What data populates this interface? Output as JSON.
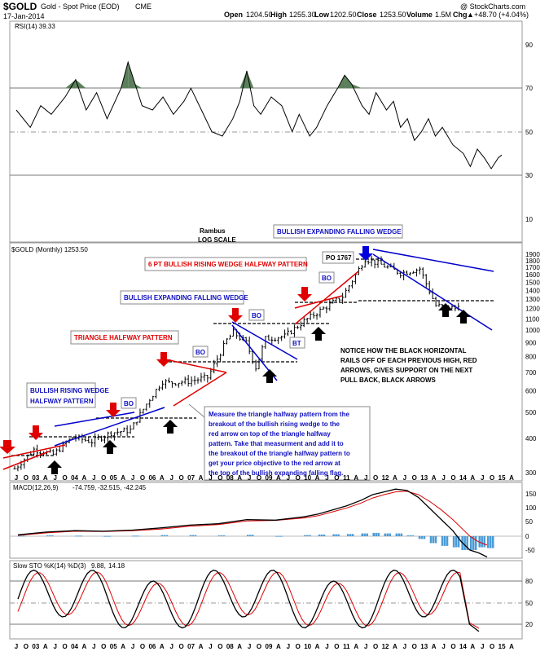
{
  "header": {
    "symbol": "$GOLD",
    "name": "Gold - Spot Price (EOD)",
    "exchange": "CME",
    "date": "17-Jan-2014",
    "open_label": "Open",
    "open": "1204.50",
    "high_label": "High",
    "high": "1255.30",
    "low_label": "Low",
    "low": "1202.50",
    "close_label": "Close",
    "close": "1253.50",
    "volume_label": "Volume",
    "volume": "1.5M",
    "chg_label": "Chg",
    "chg": "+48.70 (+4.04%)",
    "chg_arrow": "▲",
    "copyright": "@ StockCharts.com"
  },
  "rsi_panel": {
    "label": "RSI(14) 39.33",
    "ticks": [
      "90",
      "70",
      "50",
      "30",
      "10"
    ]
  },
  "price_panel": {
    "label": "$GOLD (Monthly) 1253.50",
    "scale_note_1": "Rambus",
    "scale_note_2": "LOG SCALE",
    "y_ticks": [
      "1900",
      "1800",
      "1700",
      "1600",
      "1500",
      "1400",
      "1300",
      "1200",
      "1100",
      "1000",
      "900",
      "800",
      "700",
      "600",
      "500",
      "400",
      "300"
    ],
    "po_label": "PO 1767"
  },
  "annotations": {
    "bullish_rising_wedge_1": "BULLISH RISING WEDGE",
    "bullish_rising_wedge_2": "HALFWAY PATTERN",
    "triangle_halfway": "TRIANGLE HALFWAY PATTERN",
    "expanding_falling_wedge_1": "BULLISH EXPANDING FALLING WEDGE",
    "rising_wedge_6pt": "6 PT BULLISH RISING WEDGE HALFWAY PATTERN",
    "expanding_falling_wedge_2": "BULLISH EXPANDING FALLING WEDGE",
    "bo": "BO",
    "bt": "BT",
    "notice_lines": [
      "NOTICE HOW THE  BLACK HORIZONTAL",
      "RAILS OFF OF EACH PREVIOUS HIGH, RED",
      "ARROWS,  GIVES SUPPORT ON THE NEXT",
      "PULL BACK,  BLACK ARROWS"
    ],
    "measure_lines": [
      "Measure the triangle halfway pattern from the",
      "breakout of the bullish rising wedge to the",
      "red arrow on top of the triangle halfway",
      "pattern. Take that measurment and add it to",
      "the breakout of the triangle halfway pattern to",
      "get your price objective to the red arrow at",
      "the top of the bullish expanding falling flag."
    ]
  },
  "macd_panel": {
    "label": "MACD(12,26,9)",
    "v1": "-74.759,",
    "v2": "-32.515,",
    "v3": "-42.245",
    "ticks": [
      "150",
      "100",
      "50",
      "0",
      "-50"
    ]
  },
  "sto_panel": {
    "label": "Slow STO %K(14) %D(3)",
    "k": "9.88,",
    "d": "14.18",
    "ticks": [
      "80",
      "50",
      "20"
    ]
  },
  "x_axis_labels": [
    "J",
    "O",
    "03",
    "A",
    "J",
    "O",
    "04",
    "A",
    "J",
    "O",
    "05",
    "A",
    "J",
    "O",
    "06",
    "A",
    "J",
    "O",
    "07",
    "A",
    "J",
    "O",
    "08",
    "A",
    "J",
    "O",
    "09",
    "A",
    "J",
    "O",
    "10",
    "A",
    "J",
    "O",
    "11",
    "A",
    "J",
    "O",
    "12",
    "A",
    "J",
    "O",
    "13",
    "A",
    "J",
    "O",
    "14",
    "A",
    "J",
    "O",
    "15",
    "A"
  ],
  "colors": {
    "rsi_fill": "#5b7f5b",
    "red": "#e00000",
    "blue": "#0000cc",
    "macd_hist": "#4a9ad6",
    "signal": "#dd0000",
    "grid": "#999999"
  },
  "chart_data": {
    "type": "line",
    "title": "$GOLD (Monthly)",
    "scale": "log",
    "ylim": [
      300,
      1900
    ],
    "approx_monthly_close": {
      "x": [
        "2002-07",
        "2003-01",
        "2003-07",
        "2004-01",
        "2004-07",
        "2005-01",
        "2005-07",
        "2006-01",
        "2006-05",
        "2006-07",
        "2007-01",
        "2007-07",
        "2008-01",
        "2008-03",
        "2008-07",
        "2008-10",
        "2009-01",
        "2009-07",
        "2010-01",
        "2010-07",
        "2011-01",
        "2011-08",
        "2012-01",
        "2012-07",
        "2013-01",
        "2013-06",
        "2013-12",
        "2014-01"
      ],
      "values": [
        310,
        365,
        350,
        405,
        390,
        420,
        430,
        560,
        650,
        640,
        650,
        670,
        920,
        980,
        900,
        730,
        930,
        950,
        1080,
        1200,
        1330,
        1830,
        1740,
        1620,
        1680,
        1230,
        1200,
        1253
      ]
    },
    "price_objective": 1767
  }
}
